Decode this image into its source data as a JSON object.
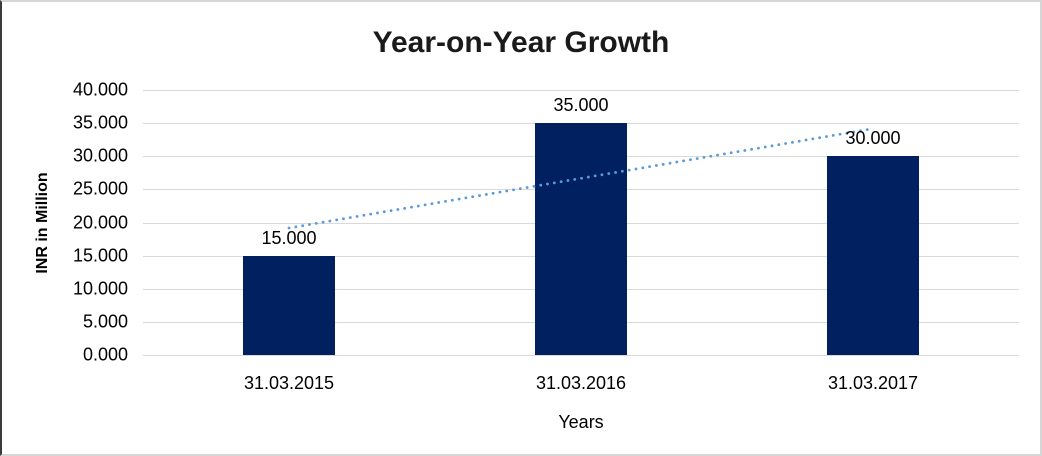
{
  "chart_data": {
    "type": "bar",
    "title": "Year-on-Year Growth",
    "xlabel": "Years",
    "ylabel": "INR in Million",
    "categories": [
      "31.03.2015",
      "31.03.2016",
      "31.03.2017"
    ],
    "values": [
      15,
      35,
      30
    ],
    "value_labels": [
      "15.000",
      "35.000",
      "30.000"
    ],
    "ylim": [
      0,
      40
    ],
    "ytick_step": 5,
    "ytick_labels": [
      "0.000",
      "5.000",
      "10.000",
      "15.000",
      "20.000",
      "25.000",
      "30.000",
      "35.000",
      "40.000"
    ],
    "grid": "horizontal-on",
    "legend": "none",
    "colors": {
      "bar": "#002060",
      "gridline": "#d9d9d9",
      "trendline": "#5b9bd5",
      "title_text": "#1a1a1a",
      "label_text": "#000000"
    },
    "trendline": {
      "type": "linear",
      "style": "dotted",
      "endpoint_values": [
        19.167,
        34.167
      ]
    }
  }
}
